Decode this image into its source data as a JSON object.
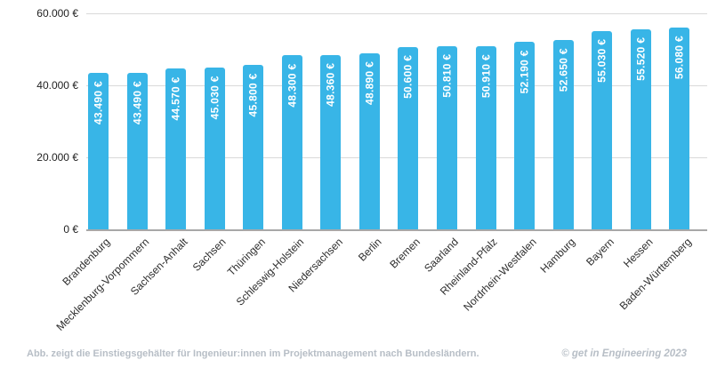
{
  "chart_data": {
    "type": "bar",
    "title": "",
    "xlabel": "",
    "ylabel": "",
    "categories": [
      "Brandenburg",
      "Mecklenburg-Vorpommern",
      "Sachsen-Anhalt",
      "Sachsen",
      "Thüringen",
      "Schleswig-Holstein",
      "Niedersachsen",
      "Berlin",
      "Bremen",
      "Saarland",
      "Rheinland-Pfalz",
      "Nordrhein-Westfalen",
      "Hamburg",
      "Bayern",
      "Hessen",
      "Baden-Württemberg"
    ],
    "values": [
      43490,
      43490,
      44570,
      45030,
      45800,
      48300,
      48360,
      48890,
      50600,
      50810,
      50910,
      52190,
      52650,
      55030,
      55520,
      56080
    ],
    "value_labels": [
      "43.490 €",
      "43.490 €",
      "44.570 €",
      "45.030 €",
      "45.800 €",
      "48.300 €",
      "48.360 €",
      "48.890 €",
      "50.600 €",
      "50.810 €",
      "50.910 €",
      "52.190 €",
      "52.650 €",
      "55.030 €",
      "55.520 €",
      "56.080 €"
    ],
    "y_ticks": [
      {
        "value": 0,
        "label": "0 €"
      },
      {
        "value": 20000,
        "label": "20.000 €"
      },
      {
        "value": 40000,
        "label": "40.000 €"
      },
      {
        "value": 60000,
        "label": "60.000 €"
      }
    ],
    "ylim": [
      0,
      60000
    ],
    "grid": true,
    "legend_position": "none",
    "bar_color": "#38B5E7",
    "bar_label_color": "#ffffff"
  },
  "footer": {
    "caption": "Abb. zeigt die Einstiegsgehälter für Ingenieur:innen im Projektmanagement nach Bundesländern.",
    "credit": "© get in Engineering 2023"
  }
}
